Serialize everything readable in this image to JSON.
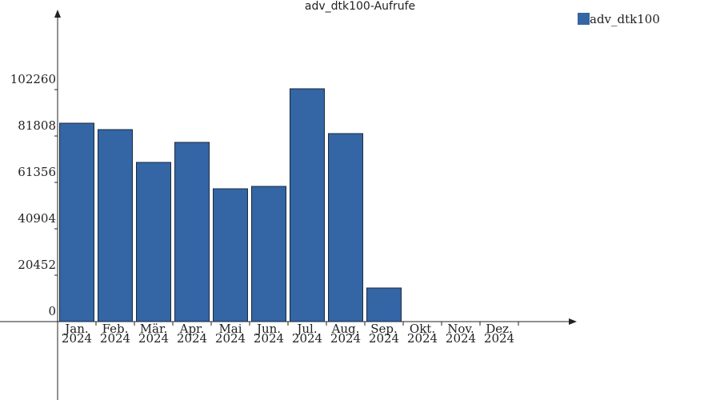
{
  "chart_data": {
    "type": "bar",
    "title": "adv_dtk100-Aufrufe",
    "categories": [
      [
        "Jan.",
        "2024"
      ],
      [
        "Feb.",
        "2024"
      ],
      [
        "Mär.",
        "2024"
      ],
      [
        "Apr.",
        "2024"
      ],
      [
        "Mai",
        "2024"
      ],
      [
        "Jun.",
        "2024"
      ],
      [
        "Jul.",
        "2024"
      ],
      [
        "Aug.",
        "2024"
      ],
      [
        "Sep.",
        "2024"
      ],
      [
        "Okt.",
        "2024"
      ],
      [
        "Nov.",
        "2024"
      ],
      [
        "Dez.",
        "2024"
      ]
    ],
    "series": [
      {
        "name": "adv_dtk100",
        "color": "#3465a4",
        "values": [
          87450,
          84630,
          70170,
          79000,
          58540,
          59600,
          102620,
          82870,
          14810,
          0,
          0,
          0
        ]
      }
    ],
    "ylim": [
      -34560,
      136460
    ],
    "yticks": [
      0,
      20452,
      40904,
      61356,
      81808,
      102260
    ],
    "legend": "top-right"
  }
}
